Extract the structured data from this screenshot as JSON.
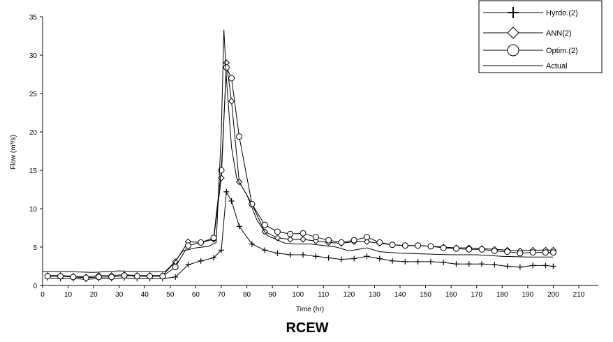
{
  "chart_data": {
    "type": "line",
    "title": "",
    "caption": "RCEW",
    "xlabel": "Time (hr)",
    "ylabel": "Flow (m³/s)",
    "xlim": [
      0,
      210
    ],
    "ylim": [
      0,
      35
    ],
    "x_ticks": [
      0,
      10,
      20,
      30,
      40,
      50,
      60,
      70,
      80,
      90,
      100,
      110,
      120,
      130,
      140,
      150,
      160,
      170,
      180,
      190,
      200,
      210
    ],
    "y_ticks": [
      0,
      5,
      10,
      15,
      20,
      25,
      30,
      35
    ],
    "grid": false,
    "legend_position": "top-right",
    "series": [
      {
        "name": "Hyrdo.(2)",
        "marker": "plus",
        "points": [
          [
            2,
            1.0
          ],
          [
            7,
            0.9
          ],
          [
            12,
            0.9
          ],
          [
            17,
            0.8
          ],
          [
            22,
            0.9
          ],
          [
            27,
            0.9
          ],
          [
            32,
            1.0
          ],
          [
            37,
            0.9
          ],
          [
            42,
            0.9
          ],
          [
            47,
            0.9
          ],
          [
            52,
            1.1
          ],
          [
            57,
            2.7
          ],
          [
            62,
            3.2
          ],
          [
            67,
            3.6
          ],
          [
            70,
            4.6
          ],
          [
            72,
            12.2
          ],
          [
            74,
            11.0
          ],
          [
            77,
            7.7
          ],
          [
            82,
            5.4
          ],
          [
            87,
            4.6
          ],
          [
            92,
            4.2
          ],
          [
            97,
            4.0
          ],
          [
            102,
            4.0
          ],
          [
            107,
            3.8
          ],
          [
            112,
            3.6
          ],
          [
            117,
            3.4
          ],
          [
            122,
            3.5
          ],
          [
            127,
            3.8
          ],
          [
            132,
            3.5
          ],
          [
            137,
            3.2
          ],
          [
            142,
            3.1
          ],
          [
            147,
            3.1
          ],
          [
            152,
            3.1
          ],
          [
            157,
            3.0
          ],
          [
            162,
            2.8
          ],
          [
            167,
            2.8
          ],
          [
            172,
            2.8
          ],
          [
            177,
            2.7
          ],
          [
            182,
            2.5
          ],
          [
            187,
            2.4
          ],
          [
            192,
            2.6
          ],
          [
            197,
            2.6
          ],
          [
            200,
            2.5
          ]
        ]
      },
      {
        "name": "ANN(2)",
        "marker": "diamond",
        "points": [
          [
            2,
            1.3
          ],
          [
            7,
            1.3
          ],
          [
            12,
            1.2
          ],
          [
            17,
            1.1
          ],
          [
            22,
            1.3
          ],
          [
            27,
            1.3
          ],
          [
            32,
            1.4
          ],
          [
            37,
            1.3
          ],
          [
            42,
            1.3
          ],
          [
            47,
            1.3
          ],
          [
            52,
            3.1
          ],
          [
            57,
            5.7
          ],
          [
            62,
            5.6
          ],
          [
            67,
            6.0
          ],
          [
            70,
            14.0
          ],
          [
            72,
            29.0
          ],
          [
            74,
            24.0
          ],
          [
            77,
            13.5
          ],
          [
            82,
            10.6
          ],
          [
            87,
            7.0
          ],
          [
            92,
            6.2
          ],
          [
            97,
            6.0
          ],
          [
            102,
            6.0
          ],
          [
            107,
            5.8
          ],
          [
            112,
            5.6
          ],
          [
            117,
            5.5
          ],
          [
            122,
            5.7
          ],
          [
            127,
            5.7
          ],
          [
            132,
            5.5
          ],
          [
            137,
            5.3
          ],
          [
            142,
            5.2
          ],
          [
            147,
            5.2
          ],
          [
            152,
            5.1
          ],
          [
            157,
            5.0
          ],
          [
            162,
            4.9
          ],
          [
            167,
            4.9
          ],
          [
            172,
            4.8
          ],
          [
            177,
            4.7
          ],
          [
            182,
            4.6
          ],
          [
            187,
            4.5
          ],
          [
            192,
            4.6
          ],
          [
            197,
            4.6
          ],
          [
            200,
            4.6
          ]
        ]
      },
      {
        "name": "Optim.(2)",
        "marker": "circle",
        "points": [
          [
            2,
            1.2
          ],
          [
            7,
            1.2
          ],
          [
            12,
            1.1
          ],
          [
            17,
            1.0
          ],
          [
            22,
            1.1
          ],
          [
            27,
            1.1
          ],
          [
            32,
            1.3
          ],
          [
            37,
            1.2
          ],
          [
            42,
            1.2
          ],
          [
            47,
            1.2
          ],
          [
            52,
            2.4
          ],
          [
            57,
            5.2
          ],
          [
            62,
            5.6
          ],
          [
            67,
            6.2
          ],
          [
            70,
            15.0
          ],
          [
            72,
            28.4
          ],
          [
            74,
            27.0
          ],
          [
            77,
            19.4
          ],
          [
            82,
            10.6
          ],
          [
            87,
            7.9
          ],
          [
            92,
            7.0
          ],
          [
            97,
            6.7
          ],
          [
            102,
            6.8
          ],
          [
            107,
            6.3
          ],
          [
            112,
            5.9
          ],
          [
            117,
            5.6
          ],
          [
            122,
            5.9
          ],
          [
            127,
            6.3
          ],
          [
            132,
            5.6
          ],
          [
            137,
            5.3
          ],
          [
            142,
            5.2
          ],
          [
            147,
            5.2
          ],
          [
            152,
            5.1
          ],
          [
            157,
            4.9
          ],
          [
            162,
            4.8
          ],
          [
            167,
            4.7
          ],
          [
            172,
            4.7
          ],
          [
            177,
            4.5
          ],
          [
            182,
            4.4
          ],
          [
            187,
            4.2
          ],
          [
            192,
            4.3
          ],
          [
            197,
            4.3
          ],
          [
            200,
            4.3
          ]
        ]
      },
      {
        "name": "Actual",
        "marker": "none",
        "points": [
          [
            0,
            1.8
          ],
          [
            10,
            1.8
          ],
          [
            20,
            1.7
          ],
          [
            30,
            1.9
          ],
          [
            40,
            1.8
          ],
          [
            48,
            1.8
          ],
          [
            51,
            2.8
          ],
          [
            55,
            4.5
          ],
          [
            60,
            4.9
          ],
          [
            65,
            5.1
          ],
          [
            68,
            5.6
          ],
          [
            70,
            20.0
          ],
          [
            71,
            33.3
          ],
          [
            72,
            27.0
          ],
          [
            74,
            18.0
          ],
          [
            76,
            14.0
          ],
          [
            80,
            11.8
          ],
          [
            84,
            8.5
          ],
          [
            88,
            6.5
          ],
          [
            95,
            5.5
          ],
          [
            100,
            5.4
          ],
          [
            105,
            5.4
          ],
          [
            110,
            5.2
          ],
          [
            115,
            5.0
          ],
          [
            120,
            4.5
          ],
          [
            127,
            4.9
          ],
          [
            132,
            4.4
          ],
          [
            140,
            4.2
          ],
          [
            150,
            4.1
          ],
          [
            160,
            4.0
          ],
          [
            170,
            4.0
          ],
          [
            180,
            3.8
          ],
          [
            190,
            3.7
          ],
          [
            200,
            3.7
          ]
        ]
      }
    ]
  }
}
